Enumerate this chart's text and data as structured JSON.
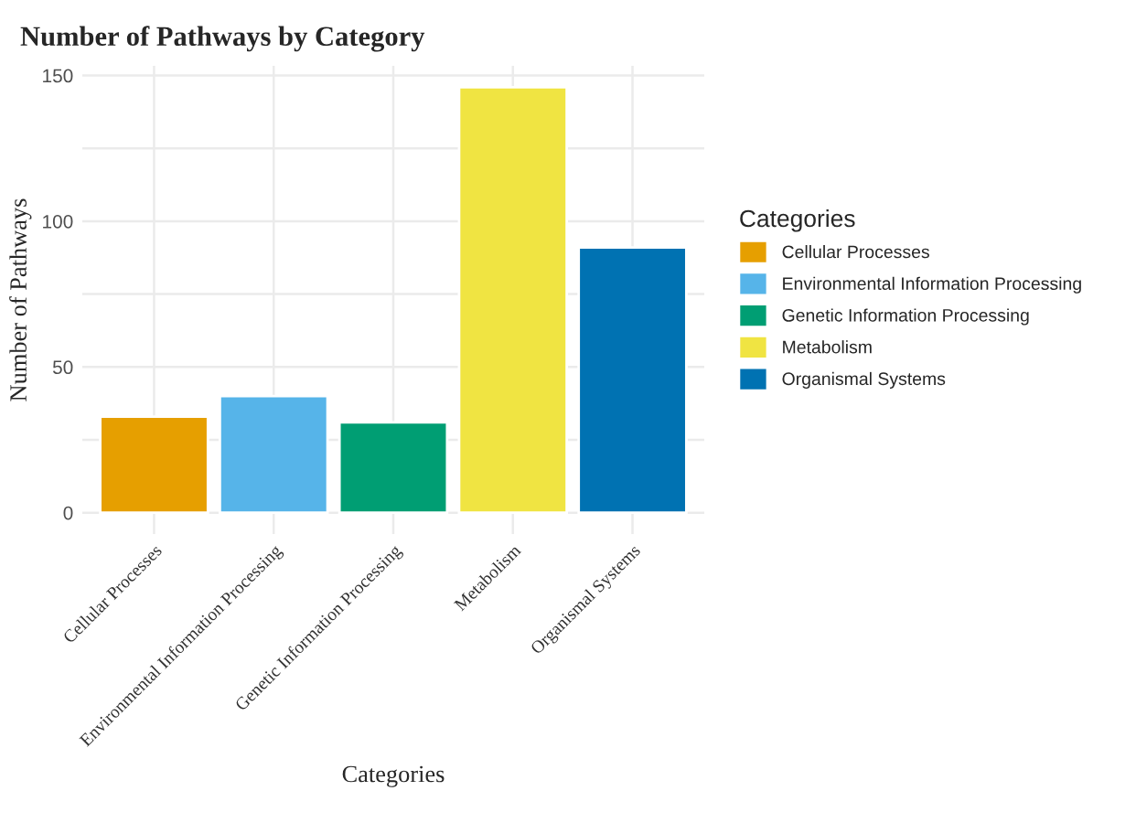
{
  "chart_data": {
    "type": "bar",
    "title": "Number of Pathways by Category",
    "xlabel": "Categories",
    "ylabel": "Number of Pathways",
    "legend_title": "Categories",
    "categories": [
      "Cellular Processes",
      "Environmental Information Processing",
      "Genetic Information Processing",
      "Metabolism",
      "Organismal Systems"
    ],
    "series": [
      {
        "name": "Cellular Processes",
        "color": "#e69f00",
        "values": [
          33,
          null,
          null,
          null,
          null
        ]
      },
      {
        "name": "Environmental Information Processing",
        "color": "#56b4e9",
        "values": [
          null,
          40,
          null,
          null,
          null
        ]
      },
      {
        "name": "Genetic Information Processing",
        "color": "#009e73",
        "values": [
          null,
          null,
          31,
          null,
          null
        ]
      },
      {
        "name": "Metabolism",
        "color": "#f0e442",
        "values": [
          null,
          null,
          null,
          146,
          null
        ]
      },
      {
        "name": "Organismal Systems",
        "color": "#0072b2",
        "values": [
          null,
          null,
          null,
          null,
          91
        ]
      }
    ],
    "ylim": [
      -7.3,
      153.3
    ],
    "yticks": [
      0,
      {
        "value": 25,
        "label": null
      },
      50,
      {
        "value": 75,
        "label": null
      },
      100,
      {
        "value": 125,
        "label": null
      },
      150
    ],
    "grid": true,
    "legend": "right"
  }
}
